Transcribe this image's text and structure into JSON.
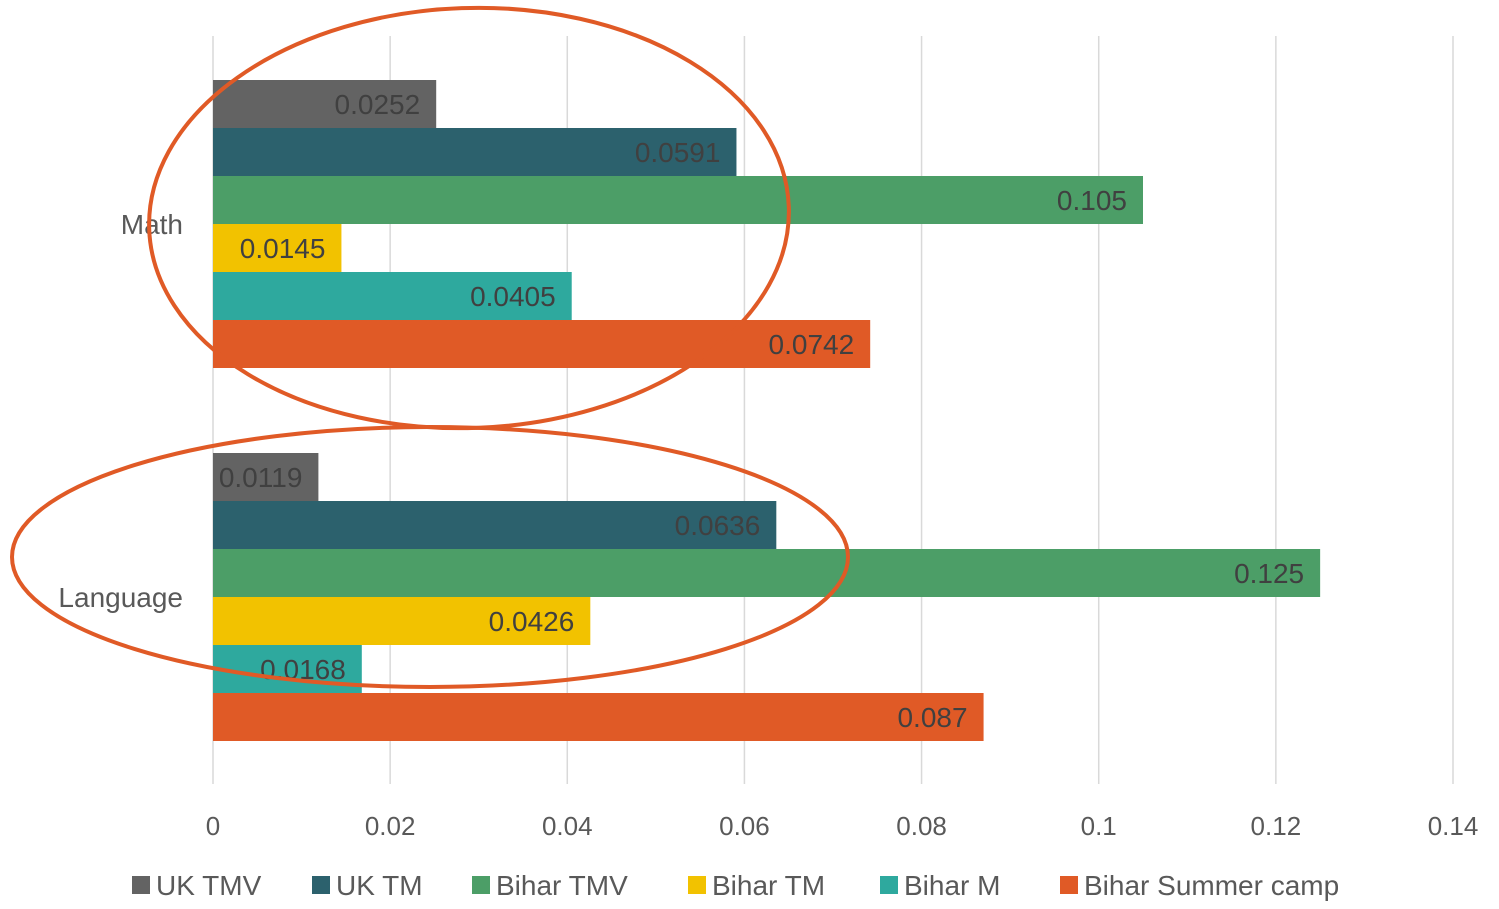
{
  "chart_data": {
    "type": "bar",
    "orientation": "horizontal",
    "title": "",
    "categories": [
      "Math",
      "Language"
    ],
    "series": [
      {
        "name": "UK TMV",
        "color": "#636363",
        "values": [
          0.0252,
          0.0119
        ],
        "labels": [
          "0.0252",
          "0.0119"
        ]
      },
      {
        "name": "UK TM",
        "color": "#2c616d",
        "values": [
          0.0591,
          0.0636
        ],
        "labels": [
          "0.0591",
          "0.0636"
        ]
      },
      {
        "name": "Bihar TMV",
        "color": "#4c9e67",
        "values": [
          0.105,
          0.125
        ],
        "labels": [
          "0.105",
          "0.125"
        ]
      },
      {
        "name": "Bihar TM",
        "color": "#f2c200",
        "values": [
          0.0145,
          0.0426
        ],
        "labels": [
          "0.0145",
          "0.0426"
        ]
      },
      {
        "name": "Bihar M",
        "color": "#2ea99e",
        "values": [
          0.0405,
          0.0168
        ],
        "labels": [
          "0.0405",
          "0.0168"
        ]
      },
      {
        "name": "Bihar Summer camp",
        "color": "#e05a26",
        "values": [
          0.0742,
          0.087
        ],
        "labels": [
          "0.0742",
          "0.087"
        ]
      }
    ],
    "xlim": [
      0,
      0.14
    ],
    "xticks": [
      "0",
      "0.02",
      "0.04",
      "0.06",
      "0.08",
      "0.1",
      "0.12",
      "0.14"
    ],
    "xlabel": "",
    "ylabel": "",
    "grid": "vertical",
    "legend": "bottom",
    "highlight_color": "#e05a26"
  }
}
